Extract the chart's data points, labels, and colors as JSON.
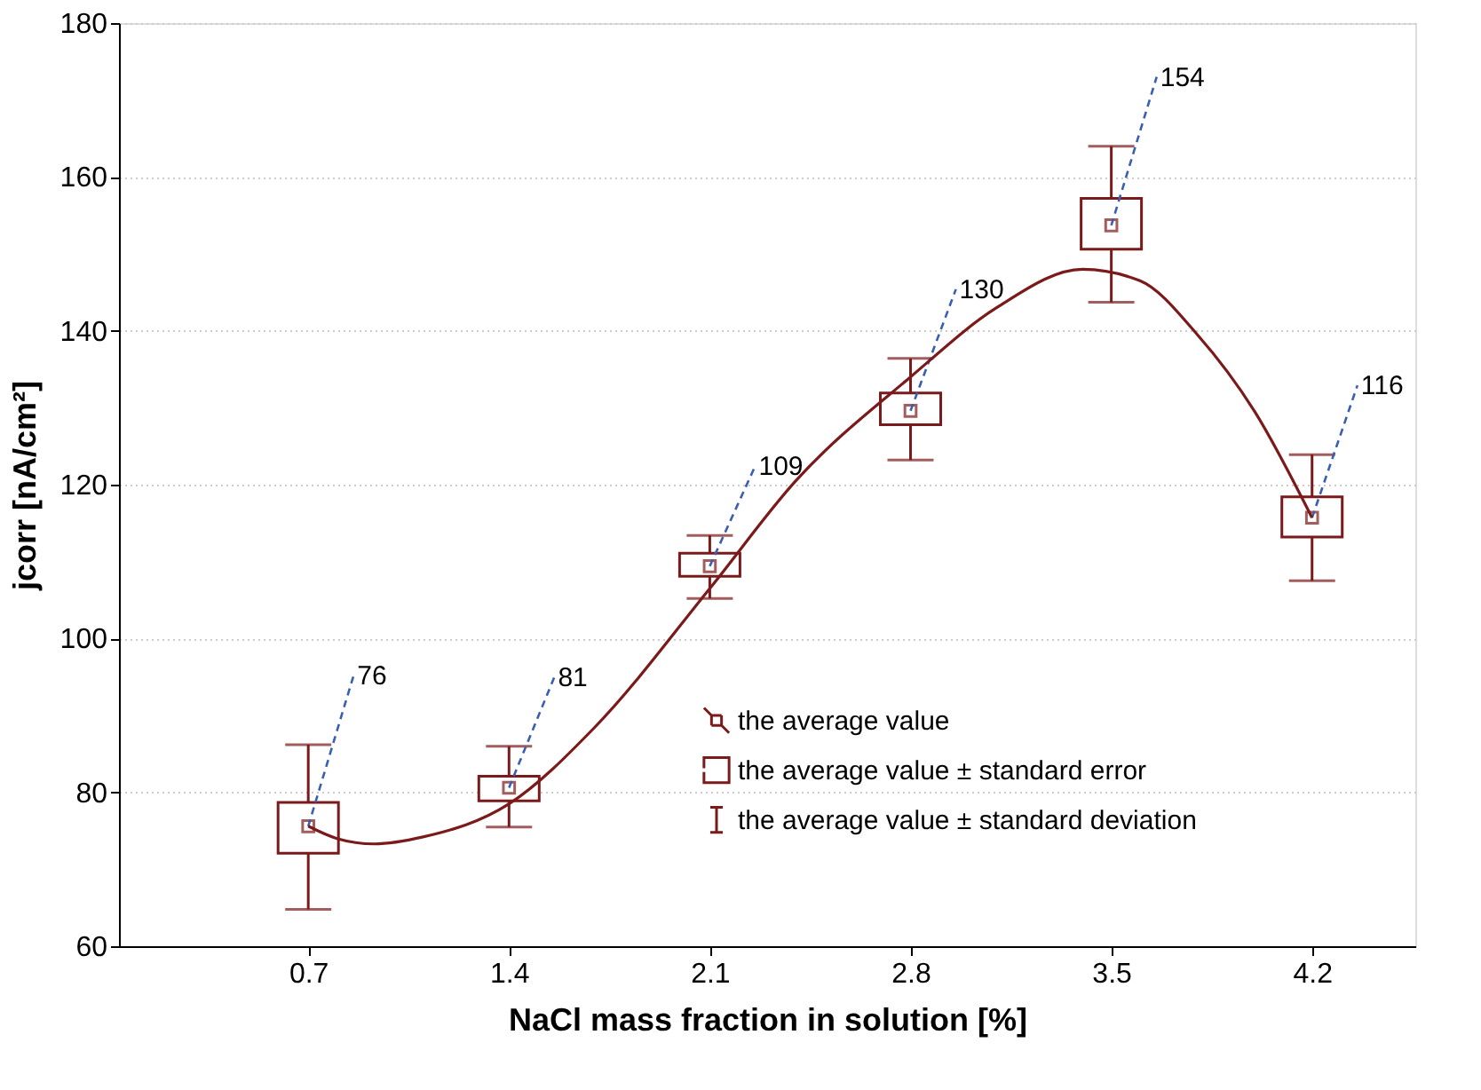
{
  "chart_data": {
    "type": "box",
    "xlabel": "NaCl mass fraction in solution [%]",
    "ylabel": "jcorr [nA/cm²]",
    "x": [
      0.7,
      1.4,
      2.1,
      2.8,
      3.5,
      4.2
    ],
    "xlim": [
      0.04,
      4.56
    ],
    "xticks": [
      0.7,
      1.4,
      2.1,
      2.8,
      3.5,
      4.2
    ],
    "ylim": [
      60,
      180
    ],
    "yticks": [
      60,
      80,
      100,
      120,
      140,
      160,
      180
    ],
    "grid": "y",
    "series": [
      {
        "color": "#7b1a1a",
        "marker": "square",
        "value_labels": [
          "76",
          "81",
          "109",
          "130",
          "154",
          "116"
        ],
        "boxes": [
          {
            "low": 64.8,
            "q1": 72.1,
            "median": 75.6,
            "q3": 78.7,
            "high": 86.2
          },
          {
            "low": 75.5,
            "q1": 78.9,
            "median": 80.6,
            "q3": 82.1,
            "high": 86.0
          },
          {
            "low": 105.2,
            "q1": 108.1,
            "median": 109.4,
            "q3": 111.1,
            "high": 113.4
          },
          {
            "low": 123.2,
            "q1": 127.8,
            "median": 129.6,
            "q3": 131.9,
            "high": 136.4
          },
          {
            "low": 143.7,
            "q1": 150.6,
            "median": 153.7,
            "q3": 157.2,
            "high": 164.0
          },
          {
            "low": 107.5,
            "q1": 113.2,
            "median": 115.7,
            "q3": 118.4,
            "high": 123.9
          }
        ]
      },
      {
        "type": "line",
        "color": "#7b1a1a",
        "x": [
          0.7,
          0.8,
          0.93,
          1.1,
          1.4,
          1.7,
          2.1,
          2.4,
          2.8,
          3.1,
          3.4,
          3.6,
          3.8,
          4.0,
          4.2
        ],
        "values": [
          75.6,
          74.0,
          73.3,
          74.2,
          78.5,
          88.5,
          106.5,
          120.5,
          134.0,
          143.0,
          148.0,
          146.5,
          139.5,
          129.5,
          115.7
        ]
      }
    ],
    "annotations": [
      "the average value",
      "the average value ± standard error",
      "the average value ±  standard deviation"
    ]
  }
}
